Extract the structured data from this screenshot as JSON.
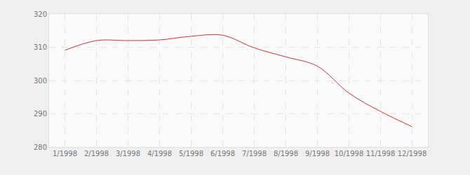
{
  "chart_data": {
    "type": "line",
    "categories": [
      "1/1998",
      "2/1998",
      "3/1998",
      "4/1998",
      "5/1998",
      "6/1998",
      "7/1998",
      "8/1998",
      "9/1998",
      "10/1998",
      "11/1998",
      "12/1998"
    ],
    "values": [
      309.1,
      312.0,
      312.0,
      312.2,
      313.3,
      313.6,
      309.8,
      307.1,
      304.3,
      296.2,
      290.7,
      286.1
    ],
    "color": "#cc3333",
    "line_style": "smooth",
    "ylim": [
      280,
      320
    ],
    "yticks": [
      280,
      290,
      300,
      310,
      320
    ],
    "grid": true
  }
}
